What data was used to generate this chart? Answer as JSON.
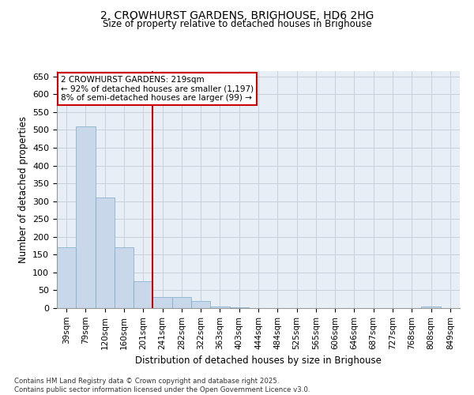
{
  "title_line1": "2, CROWHURST GARDENS, BRIGHOUSE, HD6 2HG",
  "title_line2": "Size of property relative to detached houses in Brighouse",
  "xlabel": "Distribution of detached houses by size in Brighouse",
  "ylabel": "Number of detached properties",
  "bar_color": "#c8d8ea",
  "bar_edge_color": "#7aaac8",
  "vline_color": "#cc0000",
  "vline_x": 4.5,
  "annotation_text": "2 CROWHURST GARDENS: 219sqm\n← 92% of detached houses are smaller (1,197)\n8% of semi-detached houses are larger (99) →",
  "annotation_box_color": "#ffffff",
  "annotation_box_edge": "#cc0000",
  "categories": [
    "39sqm",
    "79sqm",
    "120sqm",
    "160sqm",
    "201sqm",
    "241sqm",
    "282sqm",
    "322sqm",
    "363sqm",
    "403sqm",
    "444sqm",
    "484sqm",
    "525sqm",
    "565sqm",
    "606sqm",
    "646sqm",
    "687sqm",
    "727sqm",
    "768sqm",
    "808sqm",
    "849sqm"
  ],
  "values": [
    170,
    510,
    310,
    170,
    75,
    32,
    32,
    19,
    5,
    2,
    1,
    0,
    0,
    0,
    0,
    0,
    0,
    0,
    0,
    5,
    0
  ],
  "ylim": [
    0,
    665
  ],
  "yticks": [
    0,
    50,
    100,
    150,
    200,
    250,
    300,
    350,
    400,
    450,
    500,
    550,
    600,
    650
  ],
  "footer_line1": "Contains HM Land Registry data © Crown copyright and database right 2025.",
  "footer_line2": "Contains public sector information licensed under the Open Government Licence v3.0.",
  "background_color": "#ffffff",
  "plot_bg_color": "#e8eef5",
  "grid_color": "#c0ccd8"
}
